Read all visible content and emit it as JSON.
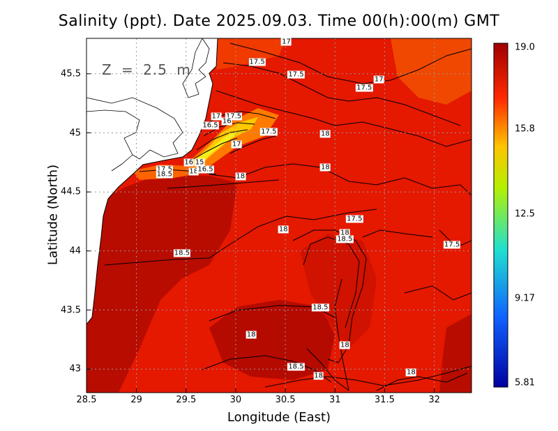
{
  "title": "Salinity (ppt). Date 2025.09.03. Time 00(h):00(m) GMT",
  "depth_label": "Z = 2.5 m",
  "x_axis": {
    "label": "Longitude (East)",
    "ticks": [
      "28.5",
      "29",
      "29.5",
      "30",
      "30.5",
      "31",
      "31.5",
      "32"
    ],
    "range": [
      28.5,
      32.45
    ]
  },
  "y_axis": {
    "label": "Latitude (North)",
    "ticks": [
      "45.5",
      "45",
      "44.5",
      "44",
      "43.5",
      "43"
    ],
    "range": [
      42.8,
      45.8
    ]
  },
  "colorbar": {
    "labels": [
      "19.0",
      "15.8",
      "12.5",
      "9.17",
      "5.81"
    ],
    "colors": [
      "#a00000",
      "#ff2a00",
      "#ffc400",
      "#b4f000",
      "#20e0d0",
      "#1060ff",
      "#0000a0"
    ],
    "min": 5.81,
    "max": 19.0
  },
  "contour_labels": [
    {
      "text": "17",
      "lon": 30.55,
      "lat": 45.77
    },
    {
      "text": "17.5",
      "lon": 30.25,
      "lat": 45.6
    },
    {
      "text": "17.5",
      "lon": 30.65,
      "lat": 45.49
    },
    {
      "text": "17",
      "lon": 31.5,
      "lat": 45.45
    },
    {
      "text": "17.5",
      "lon": 31.35,
      "lat": 45.38
    },
    {
      "text": "17",
      "lon": 29.83,
      "lat": 45.14
    },
    {
      "text": "17.5",
      "lon": 30.01,
      "lat": 45.14
    },
    {
      "text": "16.5",
      "lon": 29.77,
      "lat": 45.06
    },
    {
      "text": "16",
      "lon": 29.94,
      "lat": 45.1
    },
    {
      "text": "17.5",
      "lon": 30.37,
      "lat": 45.01
    },
    {
      "text": "18",
      "lon": 30.95,
      "lat": 44.99
    },
    {
      "text": "17",
      "lon": 30.04,
      "lat": 44.9
    },
    {
      "text": "16",
      "lon": 29.55,
      "lat": 44.75
    },
    {
      "text": "15",
      "lon": 29.66,
      "lat": 44.75
    },
    {
      "text": "17.5",
      "lon": 29.3,
      "lat": 44.69
    },
    {
      "text": "18.5",
      "lon": 29.3,
      "lat": 44.65
    },
    {
      "text": "18",
      "lon": 29.6,
      "lat": 44.67
    },
    {
      "text": "16.5",
      "lon": 29.72,
      "lat": 44.69
    },
    {
      "text": "18",
      "lon": 30.08,
      "lat": 44.63
    },
    {
      "text": "18",
      "lon": 30.95,
      "lat": 44.71
    },
    {
      "text": "17.5",
      "lon": 31.25,
      "lat": 44.27
    },
    {
      "text": "18",
      "lon": 30.52,
      "lat": 44.18
    },
    {
      "text": "18",
      "lon": 31.15,
      "lat": 44.15
    },
    {
      "text": "18.5",
      "lon": 31.15,
      "lat": 44.1
    },
    {
      "text": "17.5",
      "lon": 32.25,
      "lat": 44.05
    },
    {
      "text": "18.5",
      "lon": 29.48,
      "lat": 43.98
    },
    {
      "text": "18.5",
      "lon": 30.9,
      "lat": 43.52
    },
    {
      "text": "18",
      "lon": 30.19,
      "lat": 43.29
    },
    {
      "text": "18",
      "lon": 31.15,
      "lat": 43.2
    },
    {
      "text": "18.5",
      "lon": 30.65,
      "lat": 43.02
    },
    {
      "text": "18",
      "lon": 30.88,
      "lat": 42.94
    },
    {
      "text": "18",
      "lon": 31.83,
      "lat": 42.97
    }
  ]
}
